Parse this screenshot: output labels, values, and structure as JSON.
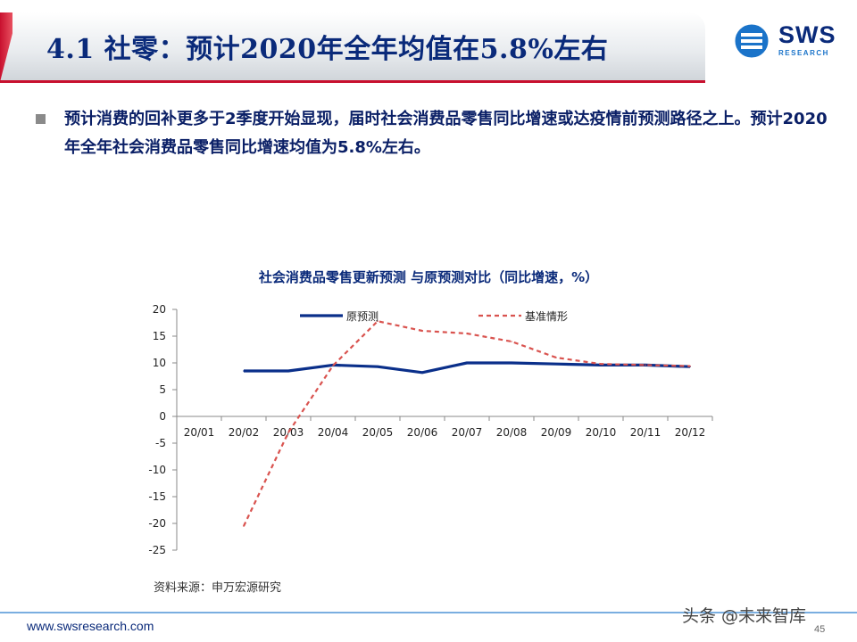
{
  "slide": {
    "title": "4.1 社零：预计2020年全年均值在5.8%左右",
    "bullet": "预计消费的回补更多于2季度开始显现，届时社会消费品零售同比增速或达疫情前预测路径之上。预计2020年全年社会消费品零售同比增速均值为5.8%左右。",
    "source": "资料来源：申万宏源研究",
    "footer_url": "www.swsresearch.com",
    "page_number": "45",
    "watermark": "头条 @未来智库",
    "logo_text": "SWS",
    "logo_sub": "RESEARCH"
  },
  "colors": {
    "title": "#0a2a7a",
    "accent_red": "#c8102e",
    "series_solid": "#0a2f8a",
    "series_dashed": "#d9534f"
  },
  "chart_data": {
    "type": "line",
    "title": "社会消费品零售更新预测 与原预测对比（同比增速，%）",
    "categories": [
      "20/01",
      "20/02",
      "20/03",
      "20/04",
      "20/05",
      "20/06",
      "20/07",
      "20/08",
      "20/09",
      "20/10",
      "20/11",
      "20/12"
    ],
    "ylim": [
      -25,
      20
    ],
    "yticks": [
      20,
      15,
      10,
      5,
      0,
      -5,
      -10,
      -15,
      -20,
      -25
    ],
    "legend_position": "top",
    "series": [
      {
        "name": "原预测",
        "style": "solid",
        "color": "#0a2f8a",
        "values": [
          null,
          8.5,
          8.5,
          9.6,
          9.3,
          8.2,
          10.0,
          10.0,
          9.8,
          9.6,
          9.6,
          9.3
        ]
      },
      {
        "name": "基准情形",
        "style": "dashed",
        "color": "#d9534f",
        "values": [
          null,
          -20.5,
          -3.0,
          9.5,
          17.8,
          16.0,
          15.5,
          14.0,
          11.0,
          9.8,
          9.6,
          9.4
        ]
      }
    ]
  }
}
